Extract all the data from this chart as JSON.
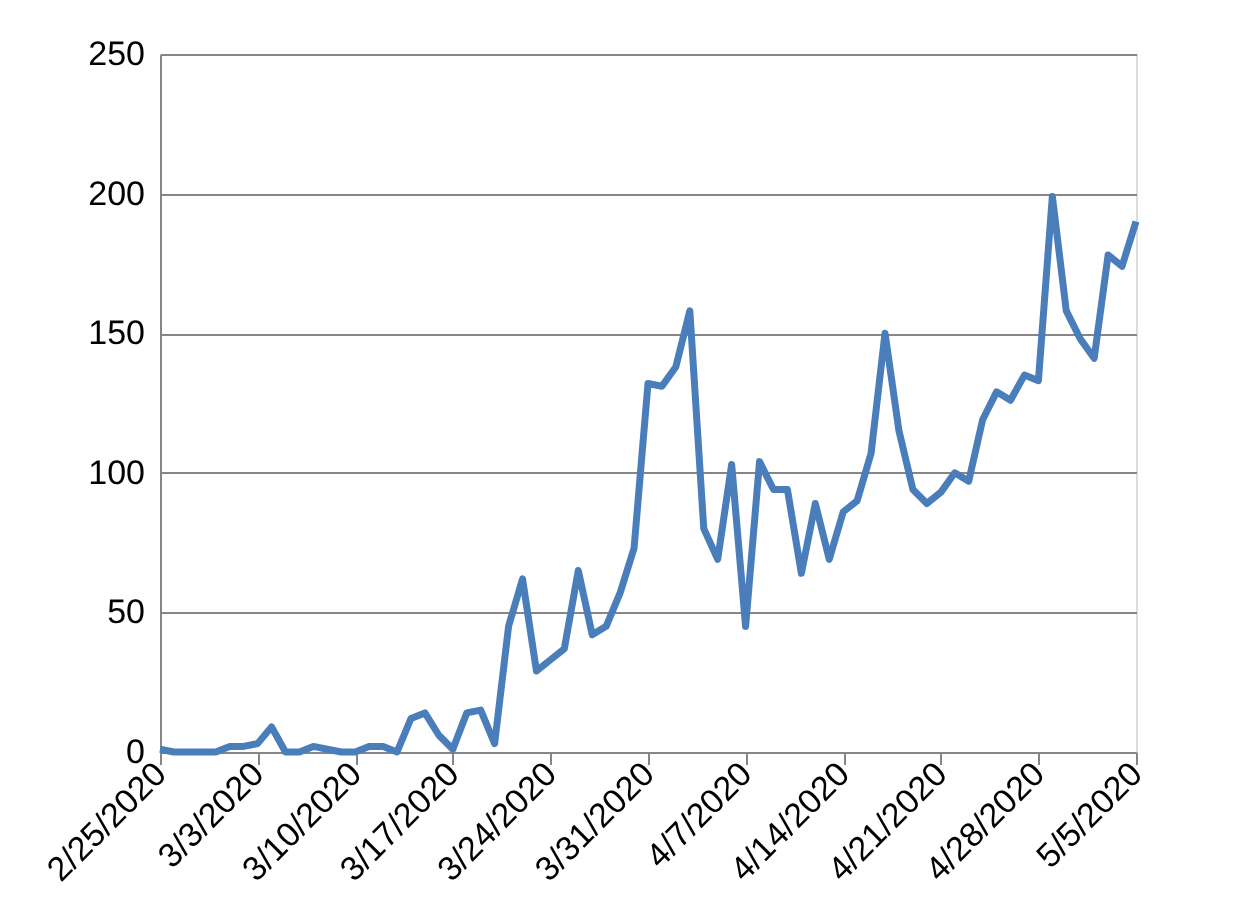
{
  "chart_data": {
    "type": "line",
    "x": [
      "2020-02-25",
      "2020-02-26",
      "2020-02-27",
      "2020-02-28",
      "2020-02-29",
      "2020-03-01",
      "2020-03-02",
      "2020-03-03",
      "2020-03-04",
      "2020-03-05",
      "2020-03-06",
      "2020-03-07",
      "2020-03-08",
      "2020-03-09",
      "2020-03-10",
      "2020-03-11",
      "2020-03-12",
      "2020-03-13",
      "2020-03-14",
      "2020-03-15",
      "2020-03-16",
      "2020-03-17",
      "2020-03-18",
      "2020-03-19",
      "2020-03-20",
      "2020-03-21",
      "2020-03-22",
      "2020-03-23",
      "2020-03-24",
      "2020-03-25",
      "2020-03-26",
      "2020-03-27",
      "2020-03-28",
      "2020-03-29",
      "2020-03-30",
      "2020-03-31",
      "2020-04-01",
      "2020-04-02",
      "2020-04-03",
      "2020-04-04",
      "2020-04-05",
      "2020-04-06",
      "2020-04-07",
      "2020-04-08",
      "2020-04-09",
      "2020-04-10",
      "2020-04-11",
      "2020-04-12",
      "2020-04-13",
      "2020-04-14",
      "2020-04-15",
      "2020-04-16",
      "2020-04-17",
      "2020-04-18",
      "2020-04-19",
      "2020-04-20",
      "2020-04-21",
      "2020-04-22",
      "2020-04-23",
      "2020-04-24",
      "2020-04-25",
      "2020-04-26",
      "2020-04-27",
      "2020-04-28",
      "2020-04-29",
      "2020-04-30",
      "2020-05-01",
      "2020-05-02",
      "2020-05-03",
      "2020-05-04",
      "2020-05-05"
    ],
    "series": [
      {
        "color": "#4a7ebb",
        "values": [
          1,
          0,
          0,
          0,
          0,
          2,
          2,
          3,
          9,
          0,
          0,
          2,
          1,
          0,
          0,
          2,
          2,
          0,
          12,
          14,
          6,
          1,
          14,
          15,
          3,
          45,
          62,
          29,
          33,
          37,
          65,
          42,
          45,
          57,
          73,
          132,
          131,
          138,
          158,
          80,
          69,
          103,
          45,
          104,
          94,
          94,
          64,
          89,
          69,
          86,
          90,
          107,
          150,
          115,
          94,
          89,
          93,
          100,
          97,
          119,
          129,
          126,
          135,
          133,
          199,
          158,
          148,
          141,
          178,
          174,
          190
        ]
      }
    ],
    "xlim": [
      "2020-02-25",
      "2020-05-05"
    ],
    "xticks": [
      {
        "value": "2020-02-25",
        "label": "2/25/2020"
      },
      {
        "value": "2020-03-03",
        "label": "3/3/2020"
      },
      {
        "value": "2020-03-10",
        "label": "3/10/2020"
      },
      {
        "value": "2020-03-17",
        "label": "3/17/2020"
      },
      {
        "value": "2020-03-24",
        "label": "3/24/2020"
      },
      {
        "value": "2020-03-31",
        "label": "3/31/2020"
      },
      {
        "value": "2020-04-07",
        "label": "4/7/2020"
      },
      {
        "value": "2020-04-14",
        "label": "4/14/2020"
      },
      {
        "value": "2020-04-21",
        "label": "4/21/2020"
      },
      {
        "value": "2020-04-28",
        "label": "4/28/2020"
      },
      {
        "value": "2020-05-05",
        "label": "5/5/2020"
      }
    ],
    "ylim": [
      0,
      250
    ],
    "yticks": [
      0,
      50,
      100,
      150,
      200,
      250
    ],
    "grid": "y",
    "marker": "none",
    "line_style": "solid"
  }
}
